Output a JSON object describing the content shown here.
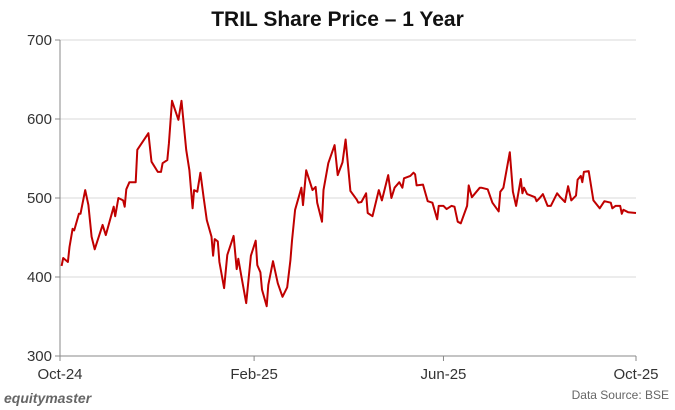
{
  "chart_data": {
    "type": "line",
    "title": "TRIL Share Price – 1 Year",
    "xlabel": "",
    "ylabel": "",
    "ylim": [
      300,
      700
    ],
    "yticks": [
      "300",
      "400",
      "500",
      "600",
      "700"
    ],
    "xlim": [
      "2024-10-01",
      "2025-10-01"
    ],
    "xticks": [
      {
        "label": "Oct-24",
        "date": "2024-10-01"
      },
      {
        "label": "Feb-25",
        "date": "2025-02-01"
      },
      {
        "label": "Jun-25",
        "date": "2025-06-01"
      },
      {
        "label": "Oct-25",
        "date": "2025-10-01"
      }
    ],
    "grid": "horizontal",
    "line_color": "#c00000",
    "series": [
      {
        "points": [
          [
            "2024-10-02",
            414
          ],
          [
            "2024-10-03",
            424
          ],
          [
            "2024-10-06",
            419
          ],
          [
            "2024-10-07",
            438
          ],
          [
            "2024-10-09",
            461
          ],
          [
            "2024-10-10",
            459
          ],
          [
            "2024-10-13",
            480
          ],
          [
            "2024-10-14",
            480
          ],
          [
            "2024-10-17",
            510
          ],
          [
            "2024-10-19",
            491
          ],
          [
            "2024-10-21",
            451
          ],
          [
            "2024-10-23",
            435
          ],
          [
            "2024-10-28",
            466
          ],
          [
            "2024-10-30",
            453
          ],
          [
            "2024-11-04",
            489
          ],
          [
            "2024-11-05",
            477
          ],
          [
            "2024-11-07",
            500
          ],
          [
            "2024-11-10",
            497
          ],
          [
            "2024-11-11",
            489
          ],
          [
            "2024-11-12",
            511
          ],
          [
            "2024-11-14",
            520
          ],
          [
            "2024-11-18",
            520
          ],
          [
            "2024-11-19",
            561
          ],
          [
            "2024-11-26",
            582
          ],
          [
            "2024-11-28",
            546
          ],
          [
            "2024-12-02",
            533
          ],
          [
            "2024-12-04",
            533
          ],
          [
            "2024-12-05",
            544
          ],
          [
            "2024-12-08",
            548
          ],
          [
            "2024-12-09",
            569
          ],
          [
            "2024-12-11",
            623
          ],
          [
            "2024-12-15",
            599
          ],
          [
            "2024-12-17",
            623
          ],
          [
            "2024-12-20",
            561
          ],
          [
            "2024-12-22",
            535
          ],
          [
            "2024-12-24",
            487
          ],
          [
            "2024-12-25",
            510
          ],
          [
            "2024-12-27",
            508
          ],
          [
            "2024-12-29",
            532
          ],
          [
            "2024-12-31",
            501
          ],
          [
            "2025-01-02",
            472
          ],
          [
            "2025-01-05",
            451
          ],
          [
            "2025-01-06",
            427
          ],
          [
            "2025-01-07",
            448
          ],
          [
            "2025-01-09",
            445
          ],
          [
            "2025-01-10",
            419
          ],
          [
            "2025-01-13",
            386
          ],
          [
            "2025-01-15",
            428
          ],
          [
            "2025-01-19",
            452
          ],
          [
            "2025-01-21",
            410
          ],
          [
            "2025-01-22",
            423
          ],
          [
            "2025-01-24",
            400
          ],
          [
            "2025-01-27",
            367
          ],
          [
            "2025-01-30",
            427
          ],
          [
            "2025-02-02",
            446
          ],
          [
            "2025-02-03",
            415
          ],
          [
            "2025-02-05",
            406
          ],
          [
            "2025-02-06",
            384
          ],
          [
            "2025-02-09",
            363
          ],
          [
            "2025-02-10",
            390
          ],
          [
            "2025-02-13",
            420
          ],
          [
            "2025-02-16",
            392
          ],
          [
            "2025-02-19",
            375
          ],
          [
            "2025-02-22",
            387
          ],
          [
            "2025-02-24",
            421
          ],
          [
            "2025-02-25",
            446
          ],
          [
            "2025-02-27",
            485
          ],
          [
            "2025-03-03",
            513
          ],
          [
            "2025-03-04",
            491
          ],
          [
            "2025-03-06",
            535
          ],
          [
            "2025-03-10",
            510
          ],
          [
            "2025-03-12",
            514
          ],
          [
            "2025-03-13",
            494
          ],
          [
            "2025-03-16",
            470
          ],
          [
            "2025-03-17",
            510
          ],
          [
            "2025-03-20",
            544
          ],
          [
            "2025-03-24",
            567
          ],
          [
            "2025-03-26",
            529
          ],
          [
            "2025-03-29",
            545
          ],
          [
            "2025-03-31",
            574
          ],
          [
            "2025-04-03",
            509
          ],
          [
            "2025-04-07",
            498
          ],
          [
            "2025-04-08",
            494
          ],
          [
            "2025-04-10",
            495
          ],
          [
            "2025-04-13",
            506
          ],
          [
            "2025-04-14",
            481
          ],
          [
            "2025-04-17",
            477
          ],
          [
            "2025-04-21",
            510
          ],
          [
            "2025-04-23",
            497
          ],
          [
            "2025-04-27",
            529
          ],
          [
            "2025-04-29",
            500
          ],
          [
            "2025-05-01",
            513
          ],
          [
            "2025-05-04",
            520
          ],
          [
            "2025-05-06",
            513
          ],
          [
            "2025-05-07",
            525
          ],
          [
            "2025-05-11",
            528
          ],
          [
            "2025-05-13",
            532
          ],
          [
            "2025-05-14",
            530
          ],
          [
            "2025-05-15",
            516
          ],
          [
            "2025-05-19",
            517
          ],
          [
            "2025-05-22",
            496
          ],
          [
            "2025-05-25",
            494
          ],
          [
            "2025-05-28",
            473
          ],
          [
            "2025-05-29",
            490
          ],
          [
            "2025-06-01",
            490
          ],
          [
            "2025-06-03",
            486
          ],
          [
            "2025-06-06",
            490
          ],
          [
            "2025-06-08",
            489
          ],
          [
            "2025-06-10",
            470
          ],
          [
            "2025-06-12",
            468
          ],
          [
            "2025-06-16",
            490
          ],
          [
            "2025-06-17",
            516
          ],
          [
            "2025-06-19",
            501
          ],
          [
            "2025-06-24",
            513
          ],
          [
            "2025-06-25",
            513
          ],
          [
            "2025-06-29",
            511
          ],
          [
            "2025-07-02",
            494
          ],
          [
            "2025-07-06",
            483
          ],
          [
            "2025-07-07",
            508
          ],
          [
            "2025-07-09",
            513
          ],
          [
            "2025-07-13",
            558
          ],
          [
            "2025-07-15",
            508
          ],
          [
            "2025-07-17",
            490
          ],
          [
            "2025-07-20",
            524
          ],
          [
            "2025-07-21",
            506
          ],
          [
            "2025-07-22",
            513
          ],
          [
            "2025-07-24",
            505
          ],
          [
            "2025-07-29",
            501
          ],
          [
            "2025-07-30",
            496
          ],
          [
            "2025-08-01",
            500
          ],
          [
            "2025-08-03",
            505
          ],
          [
            "2025-08-06",
            490
          ],
          [
            "2025-08-08",
            490
          ],
          [
            "2025-08-12",
            506
          ],
          [
            "2025-08-14",
            501
          ],
          [
            "2025-08-17",
            495
          ],
          [
            "2025-08-19",
            515
          ],
          [
            "2025-08-21",
            497
          ],
          [
            "2025-08-24",
            503
          ],
          [
            "2025-08-25",
            523
          ],
          [
            "2025-08-27",
            528
          ],
          [
            "2025-08-28",
            520
          ],
          [
            "2025-08-29",
            533
          ],
          [
            "2025-09-01",
            534
          ],
          [
            "2025-09-04",
            497
          ],
          [
            "2025-09-08",
            487
          ],
          [
            "2025-09-11",
            496
          ],
          [
            "2025-09-15",
            494
          ],
          [
            "2025-09-16",
            487
          ],
          [
            "2025-09-18",
            490
          ],
          [
            "2025-09-21",
            490
          ],
          [
            "2025-09-22",
            480
          ],
          [
            "2025-09-23",
            485
          ],
          [
            "2025-09-26",
            482
          ],
          [
            "2025-10-01",
            481
          ]
        ]
      }
    ]
  },
  "footer": {
    "logo": "equitymaster",
    "source": "Data Source: BSE"
  }
}
